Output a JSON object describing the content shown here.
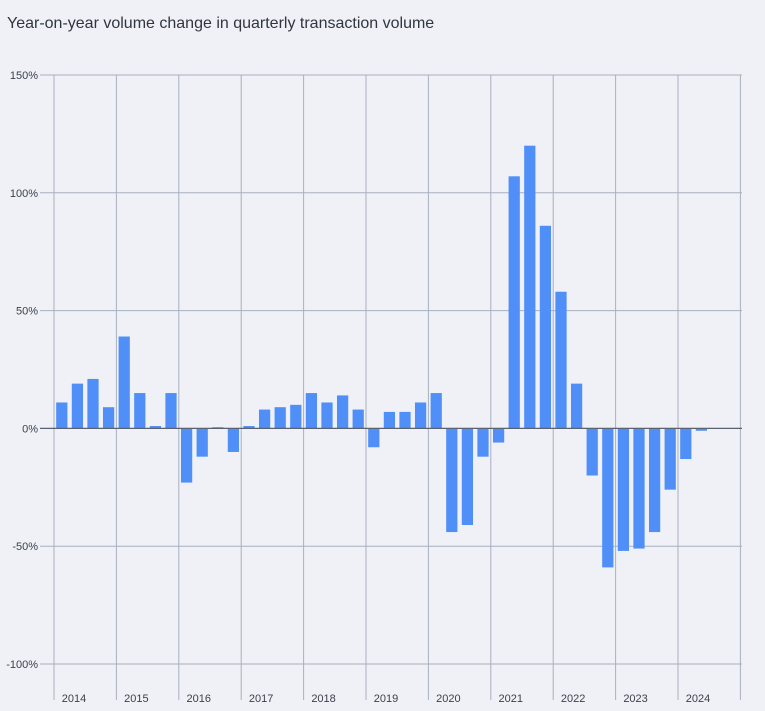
{
  "title": "Year-on-year volume change in quarterly transaction volume",
  "colors": {
    "bar": "#4f8ff7",
    "grid": "#a8afbf",
    "zero_line": "#5a6170",
    "background": "#eff1f6"
  },
  "chart_data": {
    "type": "bar",
    "title": "Year-on-year volume change in quarterly transaction volume",
    "xlabel": "",
    "ylabel": "",
    "ylim": [
      -100,
      150
    ],
    "y_ticks": [
      150,
      100,
      50,
      0,
      -50,
      -100
    ],
    "y_tick_labels": [
      "150%",
      "100%",
      "50%",
      "0%",
      "-50%",
      "-100%"
    ],
    "y_unit": "%",
    "grid": true,
    "years": [
      "2014",
      "2015",
      "2016",
      "2017",
      "2018",
      "2019",
      "2020",
      "2021",
      "2022",
      "2023",
      "2024"
    ],
    "categories": [
      "2014 Q1",
      "2014 Q2",
      "2014 Q3",
      "2014 Q4",
      "2015 Q1",
      "2015 Q2",
      "2015 Q3",
      "2015 Q4",
      "2016 Q1",
      "2016 Q2",
      "2016 Q3",
      "2016 Q4",
      "2017 Q1",
      "2017 Q2",
      "2017 Q3",
      "2017 Q4",
      "2018 Q1",
      "2018 Q2",
      "2018 Q3",
      "2018 Q4",
      "2019 Q1",
      "2019 Q2",
      "2019 Q3",
      "2019 Q4",
      "2020 Q1",
      "2020 Q2",
      "2020 Q3",
      "2020 Q4",
      "2021 Q1",
      "2021 Q2",
      "2021 Q3",
      "2021 Q4",
      "2022 Q1",
      "2022 Q2",
      "2022 Q3",
      "2022 Q4",
      "2023 Q1",
      "2023 Q2",
      "2023 Q3",
      "2023 Q4",
      "2024 Q1",
      "2024 Q2",
      "2024 Q3",
      "2024 Q4"
    ],
    "values": [
      11,
      19,
      21,
      9,
      39,
      15,
      1,
      15,
      -23,
      -12,
      0.5,
      -10,
      1,
      8,
      9,
      10,
      15,
      11,
      14,
      8,
      -8,
      7,
      7,
      11,
      15,
      -44,
      -41,
      -12,
      -6,
      107,
      120,
      86,
      58,
      19,
      -20,
      -59,
      -52,
      -51,
      -44,
      -26,
      -13,
      -1,
      null,
      null
    ]
  }
}
